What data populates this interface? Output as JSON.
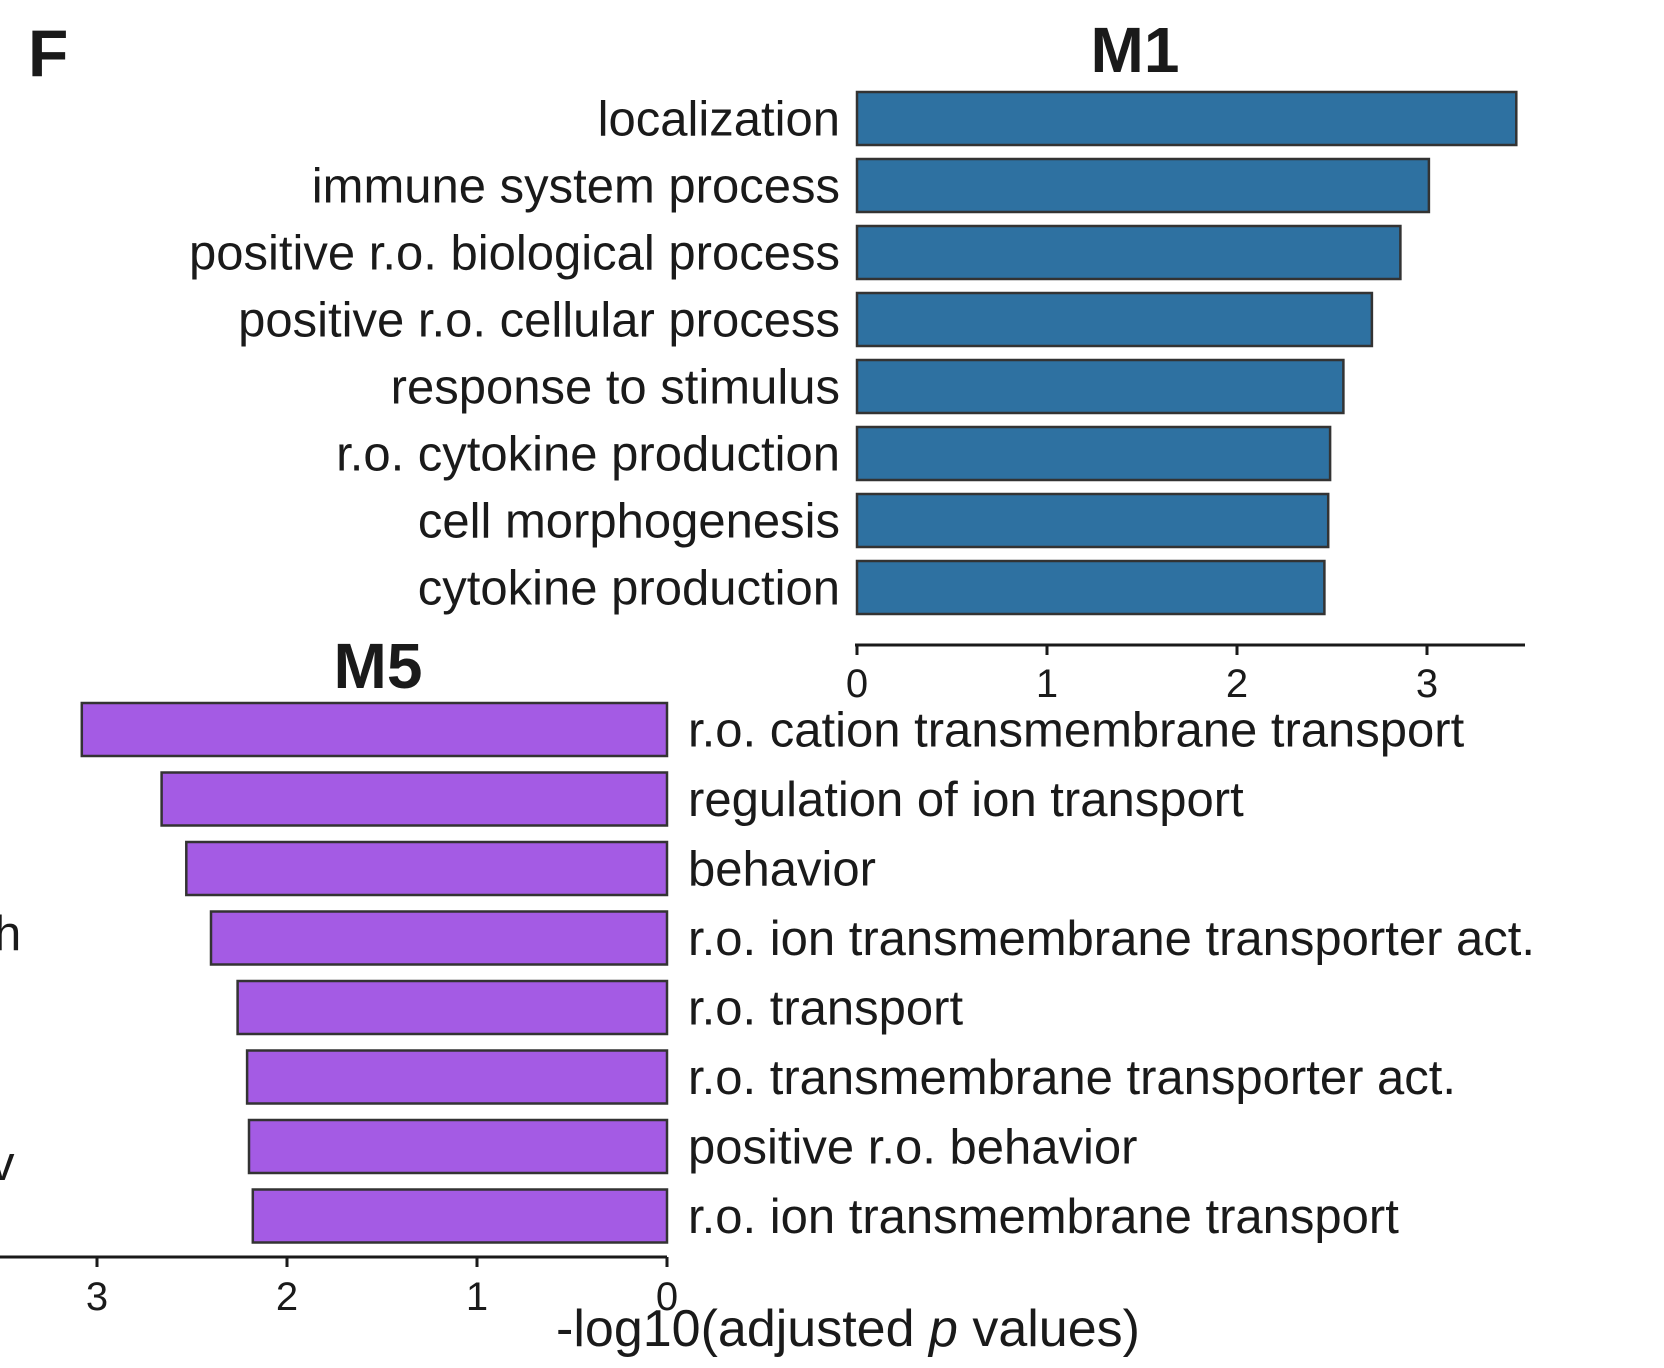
{
  "panel_label": "F",
  "partial_left_glyphs": [
    "h",
    "v"
  ],
  "x_axis_title": {
    "prefix": "-log10(adjusted ",
    "italic": "p",
    "suffix": " values)"
  },
  "colors": {
    "M1": "#2e71a1",
    "M5": "#a45be4",
    "axis": "#1a1a1a",
    "bar_edge": "#333333"
  },
  "chart_data": [
    {
      "type": "bar",
      "orientation": "horizontal",
      "title": "M1",
      "categories": [
        "localization",
        "immune system process",
        "positive r.o. biological process",
        "positive r.o. cellular process",
        "response to stimulus",
        "r.o. cytokine production",
        "cell morphogenesis",
        "cytokine production"
      ],
      "values": [
        3.47,
        3.01,
        2.86,
        2.71,
        2.56,
        2.49,
        2.48,
        2.46
      ],
      "xlim": [
        0,
        3.5
      ],
      "xticks": [
        0,
        1,
        2,
        3
      ],
      "xlabel": "",
      "ylabel": "",
      "color": "#2e71a1",
      "direction": "left-to-right",
      "label_side": "left"
    },
    {
      "type": "bar",
      "orientation": "horizontal",
      "title": "M5",
      "categories": [
        "r.o. cation transmembrane transport",
        "regulation of ion transport",
        "behavior",
        "r.o. ion transmembrane transporter act.",
        "r.o. transport",
        "r.o. transmembrane transporter act.",
        "positive r.o. behavior",
        "r.o. ion transmembrane transport"
      ],
      "values": [
        3.08,
        2.66,
        2.53,
        2.4,
        2.26,
        2.21,
        2.2,
        2.18
      ],
      "xlim": [
        0,
        3.5
      ],
      "xticks": [
        3,
        2,
        1,
        0
      ],
      "xlabel": "-log10(adjusted p values)",
      "ylabel": "",
      "color": "#a45be4",
      "direction": "right-to-left",
      "label_side": "right"
    }
  ]
}
